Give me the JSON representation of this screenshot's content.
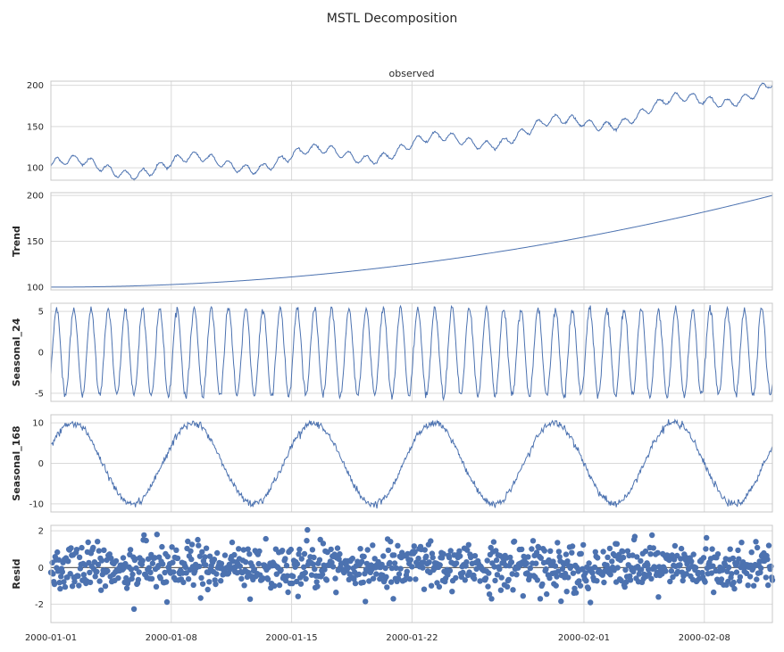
{
  "figure": {
    "title": "MSTL Decomposition"
  },
  "chart_data": {
    "type": "line",
    "title": "MSTL Decomposition",
    "x_range": [
      "2000-01-01",
      "2000-02-11T23:00"
    ],
    "x_ticks": [
      "2000-01-01",
      "2000-01-08",
      "2000-01-15",
      "2000-01-22",
      "2000-02-01",
      "2000-02-08"
    ],
    "grid": true,
    "panels": [
      {
        "title": "observed",
        "ylabel": "",
        "type": "line",
        "ylim": [
          85,
          205
        ],
        "yticks": [
          100,
          150,
          200
        ],
        "color": "#4c72b0",
        "series": {
          "trend_start": 100,
          "trend_end": 200,
          "daily_amplitude": 5.3,
          "weekly_amplitude": 10,
          "noise_sd": 0.8
        }
      },
      {
        "title": "",
        "ylabel": "Trend",
        "type": "line",
        "ylim": [
          97,
          203
        ],
        "yticks": [
          100,
          150,
          200
        ],
        "color": "#4c72b0",
        "series": {
          "start": 100,
          "end": 200,
          "shape": "quadratic"
        }
      },
      {
        "title": "",
        "ylabel": "Seasonal_24",
        "type": "line",
        "ylim": [
          -6,
          6
        ],
        "yticks": [
          -5,
          0,
          5
        ],
        "color": "#4c72b0",
        "series": {
          "period_hours": 24,
          "amplitude": 5.3
        }
      },
      {
        "title": "",
        "ylabel": "Seasonal_168",
        "type": "line",
        "ylim": [
          -12,
          12
        ],
        "yticks": [
          -10,
          0,
          10
        ],
        "color": "#4c72b0",
        "series": {
          "period_hours": 168,
          "amplitude": 10
        }
      },
      {
        "title": "",
        "ylabel": "Resid",
        "type": "scatter",
        "ylim": [
          -3,
          2.3
        ],
        "yticks": [
          -2,
          0,
          2
        ],
        "color": "#4c72b0",
        "series": {
          "noise_sd": 0.65,
          "zero_line": true
        }
      }
    ]
  }
}
